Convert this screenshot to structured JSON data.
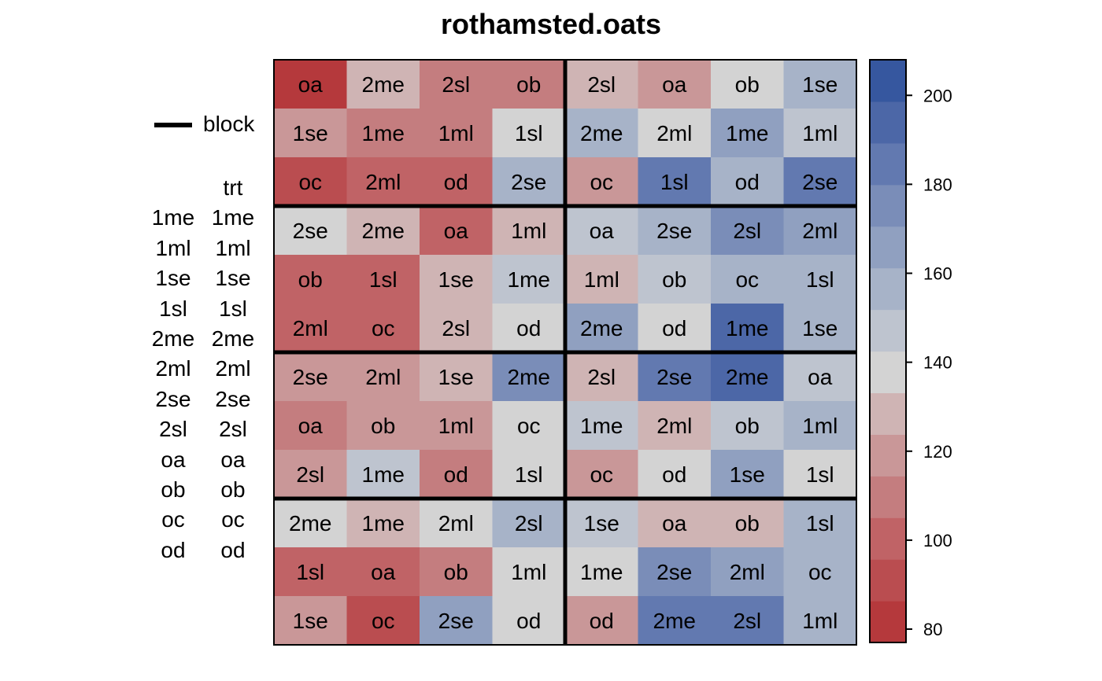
{
  "chart_data": {
    "type": "heatmap",
    "title": "rothamsted.oats",
    "rows": 12,
    "cols": 8,
    "cells": [
      [
        "oa",
        "2me",
        "2sl",
        "ob",
        "2sl",
        "oa",
        "ob",
        "1se"
      ],
      [
        "1se",
        "1me",
        "1ml",
        "1sl",
        "2me",
        "2ml",
        "1me",
        "1ml"
      ],
      [
        "oc",
        "2ml",
        "od",
        "2se",
        "oc",
        "1sl",
        "od",
        "2se"
      ],
      [
        "2se",
        "2me",
        "oa",
        "1ml",
        "oa",
        "2se",
        "2sl",
        "2ml"
      ],
      [
        "ob",
        "1sl",
        "1se",
        "1me",
        "1ml",
        "ob",
        "oc",
        "1sl"
      ],
      [
        "2ml",
        "oc",
        "2sl",
        "od",
        "2me",
        "od",
        "1me",
        "1se"
      ],
      [
        "2se",
        "2ml",
        "1se",
        "2me",
        "2sl",
        "2se",
        "2me",
        "oa"
      ],
      [
        "oa",
        "ob",
        "1ml",
        "oc",
        "1me",
        "2ml",
        "ob",
        "1ml"
      ],
      [
        "2sl",
        "1me",
        "od",
        "1sl",
        "oc",
        "od",
        "1se",
        "1sl"
      ],
      [
        "2me",
        "1me",
        "2ml",
        "2sl",
        "1se",
        "oa",
        "ob",
        "1sl"
      ],
      [
        "1sl",
        "oa",
        "ob",
        "1ml",
        "1me",
        "2se",
        "2ml",
        "oc"
      ],
      [
        "1se",
        "oc",
        "2se",
        "od",
        "od",
        "2me",
        "2sl",
        "1ml"
      ]
    ],
    "values": [
      [
        83,
        128,
        108,
        110,
        128,
        118,
        140,
        153
      ],
      [
        120,
        112,
        114,
        140,
        157,
        140,
        162,
        148
      ],
      [
        93,
        102,
        102,
        157,
        120,
        188,
        160,
        185
      ],
      [
        140,
        128,
        100,
        128,
        148,
        158,
        178,
        163
      ],
      [
        102,
        103,
        125,
        145,
        125,
        145,
        153,
        153
      ],
      [
        102,
        100,
        125,
        140,
        163,
        140,
        190,
        153
      ],
      [
        123,
        118,
        128,
        177,
        125,
        182,
        198,
        148
      ],
      [
        110,
        120,
        120,
        140,
        148,
        128,
        145,
        160
      ],
      [
        120,
        145,
        108,
        140,
        118,
        140,
        165,
        140
      ],
      [
        140,
        128,
        140,
        158,
        148,
        125,
        128,
        153
      ],
      [
        103,
        103,
        112,
        140,
        140,
        177,
        165,
        153
      ],
      [
        115,
        93,
        170,
        140,
        123,
        180,
        180,
        160
      ]
    ],
    "block_boundaries": {
      "row_breaks": [
        3,
        6,
        9
      ],
      "col_breaks": [
        4
      ]
    },
    "colorbar": {
      "min": 77,
      "max": 208,
      "ticks": [
        80,
        100,
        120,
        140,
        160,
        180,
        200
      ],
      "colors": [
        "#b5393c",
        "#ba4d50",
        "#c06366",
        "#c47d7f",
        "#c99798",
        "#cfb4b4",
        "#d3d3d3",
        "#bec4cf",
        "#a7b3c8",
        "#90a0c0",
        "#7a8db8",
        "#6279b0",
        "#4c67a7",
        "#36579f"
      ]
    },
    "legend": {
      "line_label": "block",
      "table_header": "trt"
    },
    "trt_levels": [
      [
        "1me",
        "1me"
      ],
      [
        "1ml",
        "1ml"
      ],
      [
        "1se",
        "1se"
      ],
      [
        "1sl",
        "1sl"
      ],
      [
        "2me",
        "2me"
      ],
      [
        "2ml",
        "2ml"
      ],
      [
        "2se",
        "2se"
      ],
      [
        "2sl",
        "2sl"
      ],
      [
        "oa",
        "oa"
      ],
      [
        "ob",
        "ob"
      ],
      [
        "oc",
        "oc"
      ],
      [
        "od",
        "od"
      ]
    ]
  }
}
